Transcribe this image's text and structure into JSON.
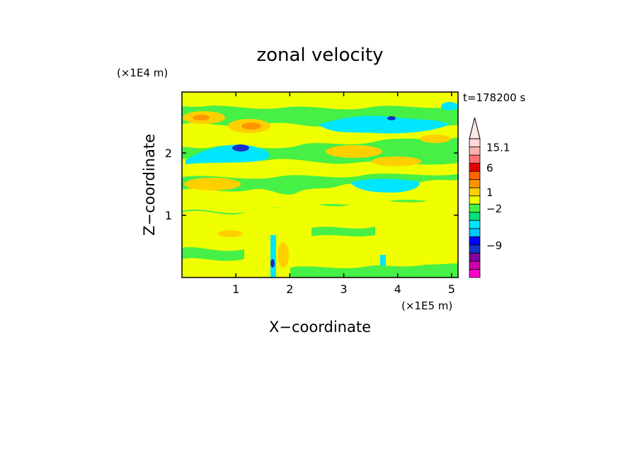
{
  "chart_data": {
    "type": "heatmap",
    "title": "zonal velocity",
    "xlabel": "X−coordinate",
    "ylabel": "Z−coordinate",
    "x_unit": "(×1E5 m)",
    "y_unit": "(×1E4 m)",
    "time_label": "t=178200 s",
    "xlim": [
      0,
      5.12
    ],
    "ylim": [
      0,
      2.98
    ],
    "x_ticks": [
      {
        "value": 1,
        "label": "1"
      },
      {
        "value": 2,
        "label": "2"
      },
      {
        "value": 3,
        "label": "3"
      },
      {
        "value": 4,
        "label": "4"
      },
      {
        "value": 5,
        "label": "5"
      }
    ],
    "y_ticks": [
      {
        "value": 1,
        "label": "1"
      },
      {
        "value": 2,
        "label": "2"
      }
    ],
    "colorbar": {
      "levels": [
        {
          "color": "#ff00c8"
        },
        {
          "color": "#cc00aa"
        },
        {
          "color": "#8000a0"
        },
        {
          "color": "#1432c8"
        },
        {
          "color": "#0000ff"
        },
        {
          "color": "#00c8ff"
        },
        {
          "color": "#00e6ff"
        },
        {
          "color": "#00e07a"
        },
        {
          "color": "#46f046"
        },
        {
          "color": "#f0ff00"
        },
        {
          "color": "#ffd000"
        },
        {
          "color": "#ff9600"
        },
        {
          "color": "#ff6400"
        },
        {
          "color": "#e60000"
        },
        {
          "color": "#ff7070"
        },
        {
          "color": "#ffb0b0"
        },
        {
          "color": "#ffd7d7"
        }
      ],
      "labels": [
        {
          "text": "15.1",
          "at_level": 16
        },
        {
          "text": "6",
          "at_level": 13.5
        },
        {
          "text": "1",
          "at_level": 10.5
        },
        {
          "text": "−2",
          "at_level": 8.5
        },
        {
          "text": "−9",
          "at_level": 4
        }
      ]
    },
    "field_colors": {
      "background": "#46f046",
      "warm": "#f0ff00",
      "orange": "#ffd000",
      "cool": "#00e6ff",
      "cold": "#1432c8",
      "hot": "#ff9600"
    }
  }
}
